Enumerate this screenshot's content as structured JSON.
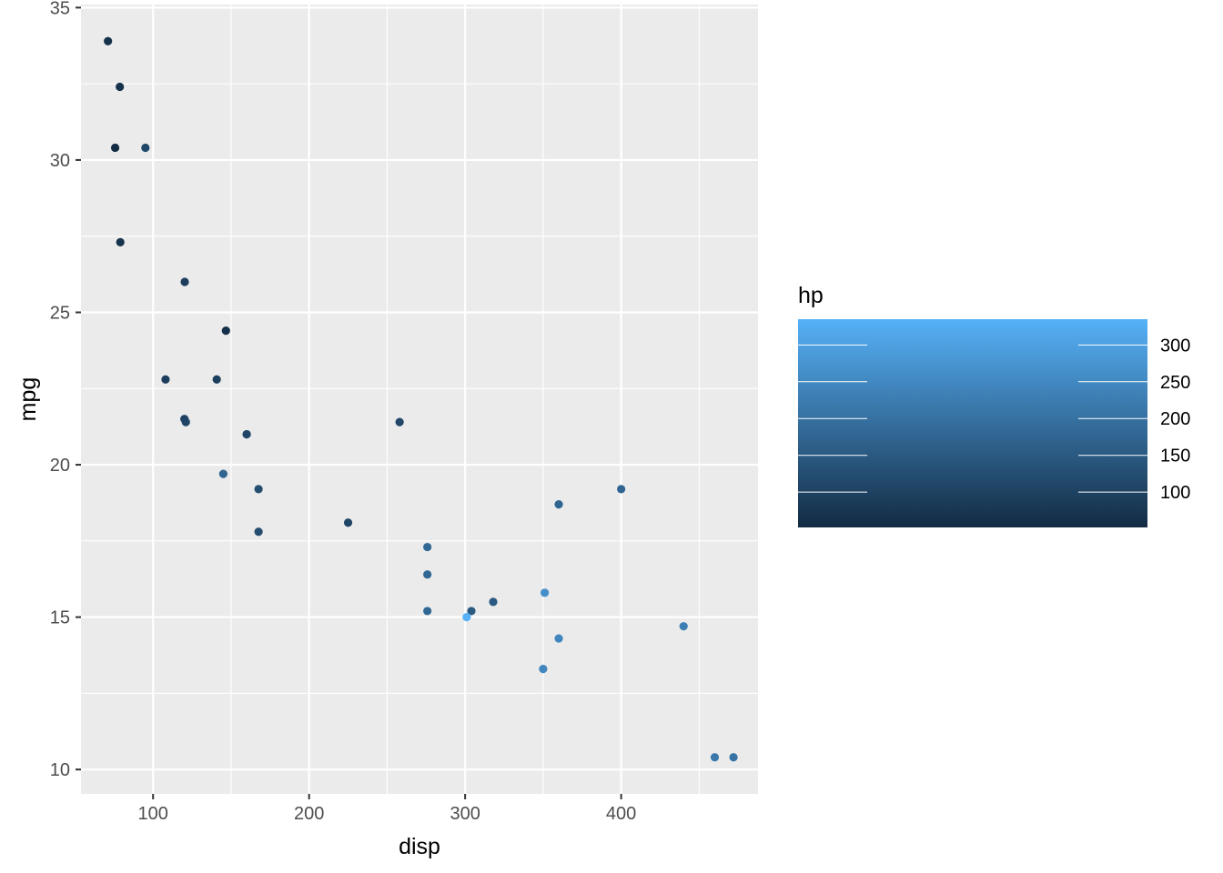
{
  "chart_data": {
    "type": "scatter",
    "xlabel": "disp",
    "ylabel": "mpg",
    "xlim": [
      53.8,
      487.7
    ],
    "ylim": [
      9.2,
      35.1
    ],
    "x_ticks": [
      100,
      200,
      300,
      400
    ],
    "y_ticks": [
      10,
      15,
      20,
      25,
      30,
      35
    ],
    "grid": true,
    "legend": {
      "title": "hp",
      "type": "colorbar",
      "placement": "right",
      "range": [
        52,
        335
      ],
      "ticks": [
        100,
        150,
        200,
        250,
        300
      ],
      "low_color": "#132b43",
      "high_color": "#56b1f7"
    },
    "points": [
      {
        "x": 160,
        "y": 21.0,
        "hp": 110
      },
      {
        "x": 160,
        "y": 21.0,
        "hp": 110
      },
      {
        "x": 108,
        "y": 22.8,
        "hp": 93
      },
      {
        "x": 258,
        "y": 21.4,
        "hp": 110
      },
      {
        "x": 360,
        "y": 18.7,
        "hp": 175
      },
      {
        "x": 225,
        "y": 18.1,
        "hp": 105
      },
      {
        "x": 360,
        "y": 14.3,
        "hp": 245
      },
      {
        "x": 146.7,
        "y": 24.4,
        "hp": 62
      },
      {
        "x": 140.8,
        "y": 22.8,
        "hp": 95
      },
      {
        "x": 167.6,
        "y": 19.2,
        "hp": 123
      },
      {
        "x": 167.6,
        "y": 17.8,
        "hp": 123
      },
      {
        "x": 275.8,
        "y": 16.4,
        "hp": 180
      },
      {
        "x": 275.8,
        "y": 17.3,
        "hp": 180
      },
      {
        "x": 275.8,
        "y": 15.2,
        "hp": 180
      },
      {
        "x": 472,
        "y": 10.4,
        "hp": 205
      },
      {
        "x": 460,
        "y": 10.4,
        "hp": 215
      },
      {
        "x": 440,
        "y": 14.7,
        "hp": 230
      },
      {
        "x": 78.7,
        "y": 32.4,
        "hp": 66
      },
      {
        "x": 75.7,
        "y": 30.4,
        "hp": 52
      },
      {
        "x": 71.1,
        "y": 33.9,
        "hp": 65
      },
      {
        "x": 120.1,
        "y": 21.5,
        "hp": 97
      },
      {
        "x": 318,
        "y": 15.5,
        "hp": 150
      },
      {
        "x": 304,
        "y": 15.2,
        "hp": 150
      },
      {
        "x": 350,
        "y": 13.3,
        "hp": 245
      },
      {
        "x": 400,
        "y": 19.2,
        "hp": 175
      },
      {
        "x": 79,
        "y": 27.3,
        "hp": 66
      },
      {
        "x": 120.3,
        "y": 26.0,
        "hp": 91
      },
      {
        "x": 95.1,
        "y": 30.4,
        "hp": 113
      },
      {
        "x": 351,
        "y": 15.8,
        "hp": 264
      },
      {
        "x": 145,
        "y": 19.7,
        "hp": 175
      },
      {
        "x": 301,
        "y": 15.0,
        "hp": 335
      },
      {
        "x": 121,
        "y": 21.4,
        "hp": 109
      }
    ]
  }
}
